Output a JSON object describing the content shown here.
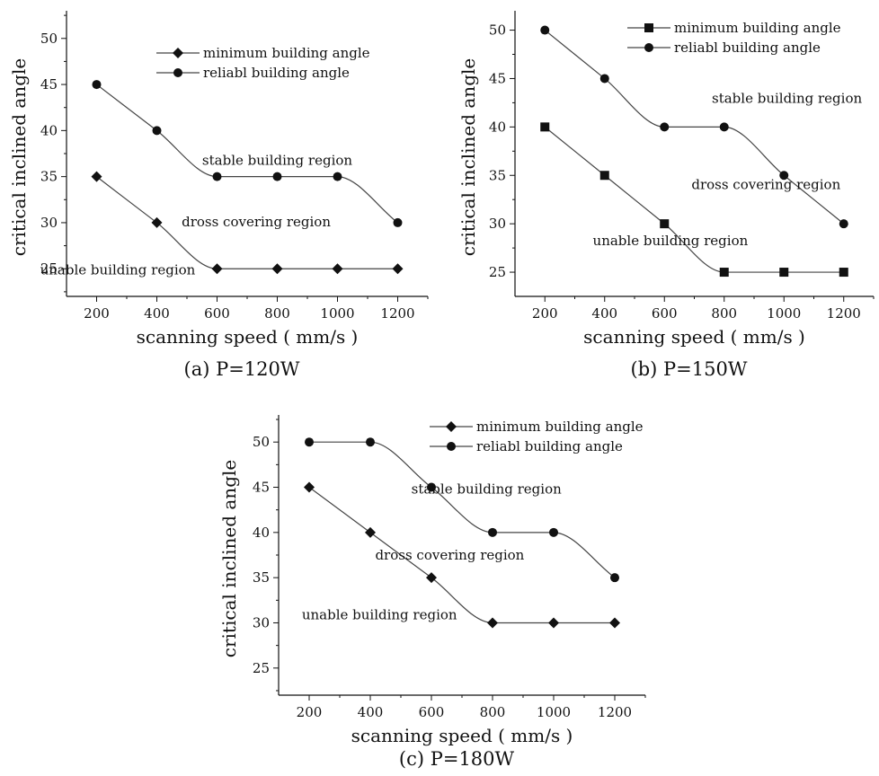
{
  "chart_data": [
    {
      "type": "line",
      "caption": "(a) P=120W",
      "xlabel": "scanning speed ( mm/s )",
      "ylabel": "critical inclined angle",
      "xlim": [
        100,
        1300
      ],
      "ylim": [
        22,
        53
      ],
      "xticks": [
        200,
        400,
        600,
        800,
        1000,
        1200
      ],
      "yticks": [
        25,
        30,
        35,
        40,
        45,
        50
      ],
      "x": [
        200,
        400,
        600,
        800,
        1000,
        1200
      ],
      "legend_position": "top-right",
      "series": [
        {
          "name": "minimum building angle",
          "marker": "diamond",
          "values": [
            35,
            30,
            25,
            25,
            25,
            25
          ]
        },
        {
          "name": "reliabl building angle",
          "marker": "circle",
          "values": [
            45,
            40,
            35,
            35,
            35,
            30
          ]
        }
      ],
      "annotations": [
        {
          "text": "stable building region",
          "x": 800,
          "y": 36.3
        },
        {
          "text": "dross covering region",
          "x": 730,
          "y": 29.6
        },
        {
          "text": "unable building region",
          "x": 270,
          "y": 24.4
        }
      ]
    },
    {
      "type": "line",
      "caption": "(b) P=150W",
      "xlabel": "scanning speed ( mm/s )",
      "ylabel": "critical inclined angle",
      "xlim": [
        100,
        1300
      ],
      "ylim": [
        22.5,
        52
      ],
      "xticks": [
        200,
        400,
        600,
        800,
        1000,
        1200
      ],
      "yticks": [
        25,
        30,
        35,
        40,
        45,
        50
      ],
      "x": [
        200,
        400,
        600,
        800,
        1000,
        1200
      ],
      "legend_position": "top-right",
      "series": [
        {
          "name": "minimum building angle",
          "marker": "square",
          "values": [
            40,
            35,
            30,
            25,
            25,
            25
          ]
        },
        {
          "name": "reliabl building angle",
          "marker": "circle",
          "values": [
            50,
            45,
            40,
            40,
            35,
            30
          ]
        }
      ],
      "annotations": [
        {
          "text": "stable building region",
          "x": 1010,
          "y": 42.5
        },
        {
          "text": "dross covering region",
          "x": 940,
          "y": 33.6
        },
        {
          "text": "unable building region",
          "x": 620,
          "y": 27.8
        }
      ]
    },
    {
      "type": "line",
      "caption": "(c) P=180W",
      "xlabel": "scanning speed ( mm/s )",
      "ylabel": "critical inclined angle",
      "xlim": [
        100,
        1300
      ],
      "ylim": [
        22,
        53
      ],
      "xticks": [
        200,
        400,
        600,
        800,
        1000,
        1200
      ],
      "yticks": [
        25,
        30,
        35,
        40,
        45,
        50
      ],
      "x": [
        200,
        400,
        600,
        800,
        1000,
        1200
      ],
      "legend_position": "top-right",
      "series": [
        {
          "name": "minimum building angle",
          "marker": "diamond",
          "values": [
            45,
            40,
            35,
            30,
            30,
            30
          ]
        },
        {
          "name": "reliabl building angle",
          "marker": "circle",
          "values": [
            50,
            50,
            45,
            40,
            40,
            35
          ]
        }
      ],
      "annotations": [
        {
          "text": "stable building region",
          "x": 780,
          "y": 44.3
        },
        {
          "text": "dross covering region",
          "x": 660,
          "y": 37.0
        },
        {
          "text": "unable building region",
          "x": 430,
          "y": 30.4
        }
      ]
    }
  ]
}
